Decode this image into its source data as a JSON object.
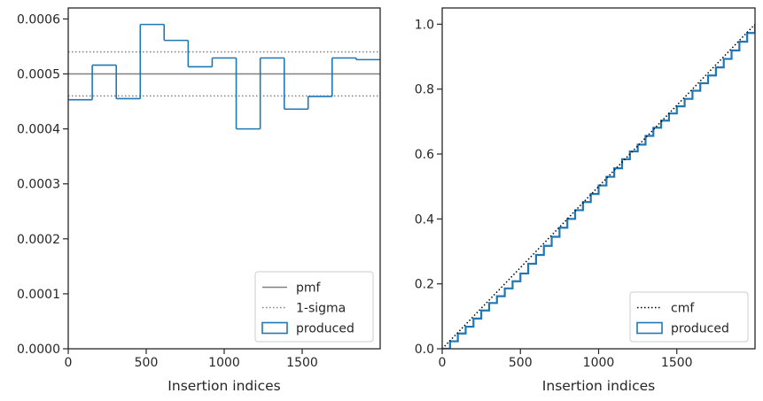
{
  "colors": {
    "hist": "#1f77b4",
    "pmf": "#808080",
    "sigma": "#808080",
    "cmf": "#000000",
    "spine": "#262626"
  },
  "chart_data": [
    {
      "type": "histogram",
      "xlabel": "Insertion indices",
      "ylabel": "",
      "xlim": [
        0,
        2000
      ],
      "ylim": [
        0,
        0.00062
      ],
      "x_ticks": [
        0,
        500,
        1000,
        1500
      ],
      "x_tick_labels": [
        "0",
        "500",
        "1000",
        "1500"
      ],
      "y_ticks": [
        0,
        0.0001,
        0.0002,
        0.0003,
        0.0004,
        0.0005,
        0.0006
      ],
      "y_tick_labels": [
        "0.0000",
        "0.0001",
        "0.0002",
        "0.0003",
        "0.0004",
        "0.0005",
        "0.0006"
      ],
      "bin_edges": [
        0,
        154,
        308,
        462,
        615,
        769,
        923,
        1077,
        1231,
        1385,
        1538,
        1692,
        1846,
        2000
      ],
      "values": [
        0.000453,
        0.000516,
        0.000455,
        0.00059,
        0.000561,
        0.000513,
        0.000529,
        0.0004,
        0.000529,
        0.000436,
        0.000459,
        0.000529,
        0.000526
      ],
      "reference_lines": [
        {
          "name": "pmf",
          "value": 0.0005,
          "style": "solid"
        },
        {
          "name": "1-sigma",
          "values": [
            0.00046,
            0.00054
          ],
          "style": "dotted"
        }
      ],
      "legend": {
        "position": "lower right",
        "entries": [
          {
            "label": "pmf",
            "kind": "line-solid"
          },
          {
            "label": "1-sigma",
            "kind": "line-dotted"
          },
          {
            "label": "produced",
            "kind": "patch"
          }
        ]
      }
    },
    {
      "type": "line",
      "xlabel": "Insertion indices",
      "ylabel": "",
      "xlim": [
        0,
        2000
      ],
      "ylim": [
        0,
        1.05
      ],
      "x_ticks": [
        0,
        500,
        1000,
        1500
      ],
      "x_tick_labels": [
        "0",
        "500",
        "1000",
        "1500"
      ],
      "y_ticks": [
        0,
        0.2,
        0.4,
        0.6,
        0.8,
        1.0
      ],
      "y_tick_labels": [
        "0.0",
        "0.2",
        "0.4",
        "0.6",
        "0.8",
        "1.0"
      ],
      "series": [
        {
          "name": "cmf",
          "style": "dotted",
          "x": [
            0,
            2000
          ],
          "y": [
            0,
            1.0
          ]
        },
        {
          "name": "produced",
          "style": "step",
          "x": [
            0,
            50,
            100,
            150,
            200,
            250,
            300,
            350,
            400,
            450,
            500,
            550,
            600,
            650,
            700,
            750,
            800,
            850,
            900,
            950,
            1000,
            1050,
            1100,
            1150,
            1200,
            1250,
            1300,
            1350,
            1400,
            1450,
            1500,
            1550,
            1600,
            1650,
            1700,
            1750,
            1800,
            1850,
            1900,
            1950,
            2000
          ],
          "y": [
            0,
            0.023,
            0.047,
            0.068,
            0.093,
            0.118,
            0.141,
            0.162,
            0.186,
            0.208,
            0.232,
            0.262,
            0.289,
            0.317,
            0.345,
            0.373,
            0.4,
            0.427,
            0.452,
            0.477,
            0.503,
            0.53,
            0.556,
            0.584,
            0.608,
            0.629,
            0.656,
            0.681,
            0.703,
            0.725,
            0.747,
            0.77,
            0.795,
            0.818,
            0.842,
            0.867,
            0.893,
            0.919,
            0.946,
            0.973,
            1.0
          ]
        }
      ],
      "legend": {
        "position": "lower right",
        "entries": [
          {
            "label": "cmf",
            "kind": "line-dotted"
          },
          {
            "label": "produced",
            "kind": "patch"
          }
        ]
      }
    }
  ]
}
